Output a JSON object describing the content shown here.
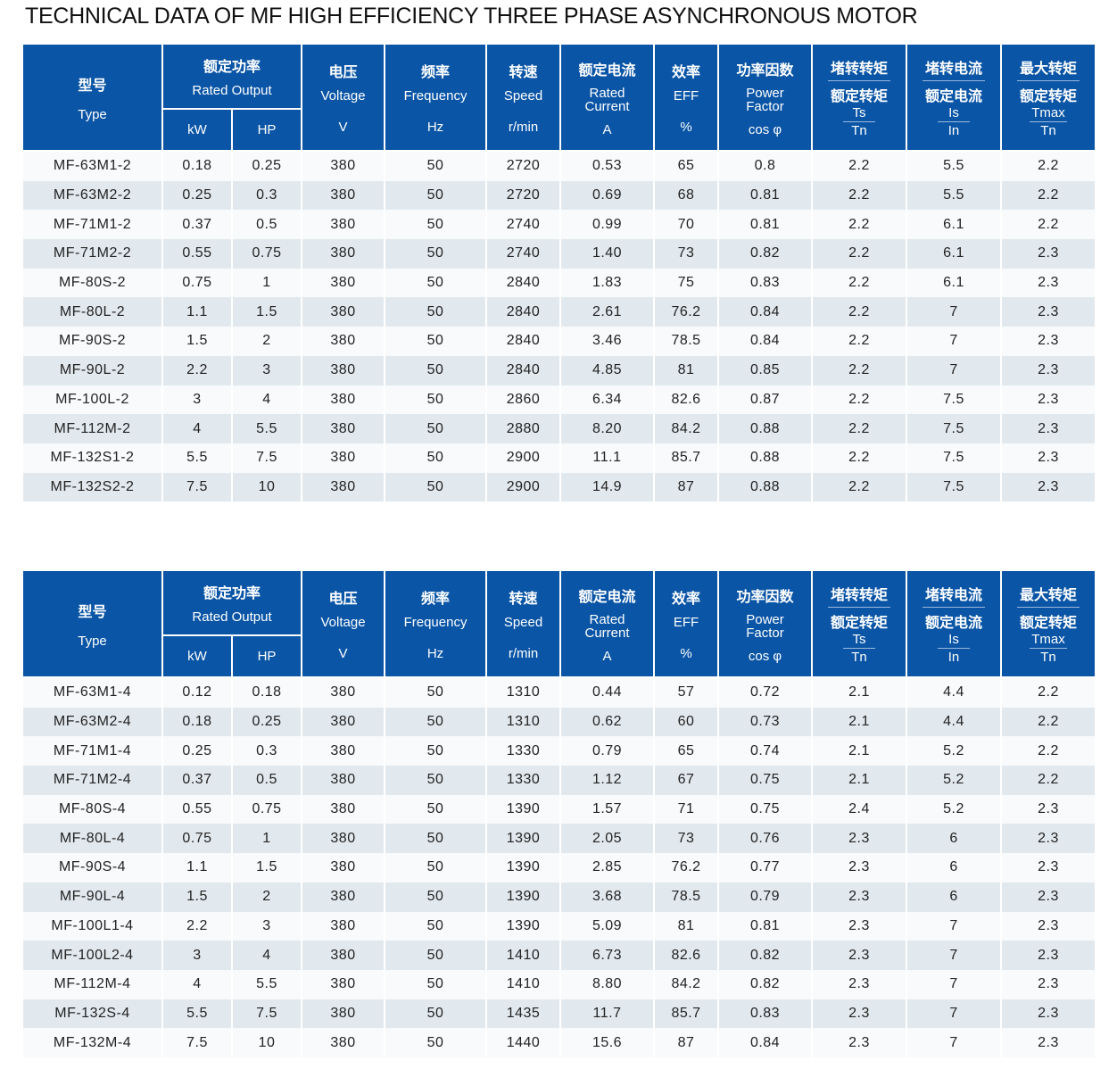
{
  "title": "TECHNICAL DATA OF MF HIGH EFFICIENCY THREE PHASE ASYNCHRONOUS MOTOR",
  "header": {
    "type_zh": "型号",
    "type_en": "Type",
    "output_zh": "额定功率",
    "output_en": "Rated Output",
    "kw": "kW",
    "hp": "HP",
    "volt_zh": "电压",
    "volt_en": "Voltage",
    "volt_unit": "V",
    "freq_zh": "频率",
    "freq_en": "Frequency",
    "freq_unit": "Hz",
    "speed_zh": "转速",
    "speed_en": "Speed",
    "speed_unit": "r/min",
    "cur_zh": "额定电流",
    "cur_en1": "Rated",
    "cur_en2": "Current",
    "cur_unit": "A",
    "eff_zh": "效率",
    "eff_en": "EFF",
    "eff_unit": "%",
    "pf_zh": "功率因数",
    "pf_en1": "Power",
    "pf_en2": "Factor",
    "pf_unit": "cos φ",
    "ts_zh1": "堵转转矩",
    "ts_zh2": "额定转矩",
    "ts_num": "Ts",
    "ts_den": "Tn",
    "is_zh1": "堵转电流",
    "is_zh2": "额定电流",
    "is_num": "Is",
    "is_den": "In",
    "tm_zh1": "最大转矩",
    "tm_zh2": "额定转矩",
    "tm_num": "Tmax",
    "tm_den": "Tn"
  },
  "tables": [
    {
      "rows": [
        [
          "MF-63M1-2",
          "0.18",
          "0.25",
          "380",
          "50",
          "2720",
          "0.53",
          "65",
          "0.8",
          "2.2",
          "5.5",
          "2.2"
        ],
        [
          "MF-63M2-2",
          "0.25",
          "0.3",
          "380",
          "50",
          "2720",
          "0.69",
          "68",
          "0.81",
          "2.2",
          "5.5",
          "2.2"
        ],
        [
          "MF-71M1-2",
          "0.37",
          "0.5",
          "380",
          "50",
          "2740",
          "0.99",
          "70",
          "0.81",
          "2.2",
          "6.1",
          "2.2"
        ],
        [
          "MF-71M2-2",
          "0.55",
          "0.75",
          "380",
          "50",
          "2740",
          "1.40",
          "73",
          "0.82",
          "2.2",
          "6.1",
          "2.3"
        ],
        [
          "MF-80S-2",
          "0.75",
          "1",
          "380",
          "50",
          "2840",
          "1.83",
          "75",
          "0.83",
          "2.2",
          "6.1",
          "2.3"
        ],
        [
          "MF-80L-2",
          "1.1",
          "1.5",
          "380",
          "50",
          "2840",
          "2.61",
          "76.2",
          "0.84",
          "2.2",
          "7",
          "2.3"
        ],
        [
          "MF-90S-2",
          "1.5",
          "2",
          "380",
          "50",
          "2840",
          "3.46",
          "78.5",
          "0.84",
          "2.2",
          "7",
          "2.3"
        ],
        [
          "MF-90L-2",
          "2.2",
          "3",
          "380",
          "50",
          "2840",
          "4.85",
          "81",
          "0.85",
          "2.2",
          "7",
          "2.3"
        ],
        [
          "MF-100L-2",
          "3",
          "4",
          "380",
          "50",
          "2860",
          "6.34",
          "82.6",
          "0.87",
          "2.2",
          "7.5",
          "2.3"
        ],
        [
          "MF-112M-2",
          "4",
          "5.5",
          "380",
          "50",
          "2880",
          "8.20",
          "84.2",
          "0.88",
          "2.2",
          "7.5",
          "2.3"
        ],
        [
          "MF-132S1-2",
          "5.5",
          "7.5",
          "380",
          "50",
          "2900",
          "11.1",
          "85.7",
          "0.88",
          "2.2",
          "7.5",
          "2.3"
        ],
        [
          "MF-132S2-2",
          "7.5",
          "10",
          "380",
          "50",
          "2900",
          "14.9",
          "87",
          "0.88",
          "2.2",
          "7.5",
          "2.3"
        ]
      ]
    },
    {
      "rows": [
        [
          "MF-63M1-4",
          "0.12",
          "0.18",
          "380",
          "50",
          "1310",
          "0.44",
          "57",
          "0.72",
          "2.1",
          "4.4",
          "2.2"
        ],
        [
          "MF-63M2-4",
          "0.18",
          "0.25",
          "380",
          "50",
          "1310",
          "0.62",
          "60",
          "0.73",
          "2.1",
          "4.4",
          "2.2"
        ],
        [
          "MF-71M1-4",
          "0.25",
          "0.3",
          "380",
          "50",
          "1330",
          "0.79",
          "65",
          "0.74",
          "2.1",
          "5.2",
          "2.2"
        ],
        [
          "MF-71M2-4",
          "0.37",
          "0.5",
          "380",
          "50",
          "1330",
          "1.12",
          "67",
          "0.75",
          "2.1",
          "5.2",
          "2.2"
        ],
        [
          "MF-80S-4",
          "0.55",
          "0.75",
          "380",
          "50",
          "1390",
          "1.57",
          "71",
          "0.75",
          "2.4",
          "5.2",
          "2.3"
        ],
        [
          "MF-80L-4",
          "0.75",
          "1",
          "380",
          "50",
          "1390",
          "2.05",
          "73",
          "0.76",
          "2.3",
          "6",
          "2.3"
        ],
        [
          "MF-90S-4",
          "1.1",
          "1.5",
          "380",
          "50",
          "1390",
          "2.85",
          "76.2",
          "0.77",
          "2.3",
          "6",
          "2.3"
        ],
        [
          "MF-90L-4",
          "1.5",
          "2",
          "380",
          "50",
          "1390",
          "3.68",
          "78.5",
          "0.79",
          "2.3",
          "6",
          "2.3"
        ],
        [
          "MF-100L1-4",
          "2.2",
          "3",
          "380",
          "50",
          "1390",
          "5.09",
          "81",
          "0.81",
          "2.3",
          "7",
          "2.3"
        ],
        [
          "MF-100L2-4",
          "3",
          "4",
          "380",
          "50",
          "1410",
          "6.73",
          "82.6",
          "0.82",
          "2.3",
          "7",
          "2.3"
        ],
        [
          "MF-112M-4",
          "4",
          "5.5",
          "380",
          "50",
          "1410",
          "8.80",
          "84.2",
          "0.82",
          "2.3",
          "7",
          "2.3"
        ],
        [
          "MF-132S-4",
          "5.5",
          "7.5",
          "380",
          "50",
          "1435",
          "11.7",
          "85.7",
          "0.83",
          "2.3",
          "7",
          "2.3"
        ],
        [
          "MF-132M-4",
          "7.5",
          "10",
          "380",
          "50",
          "1440",
          "15.6",
          "87",
          "0.84",
          "2.3",
          "7",
          "2.3"
        ]
      ]
    }
  ]
}
